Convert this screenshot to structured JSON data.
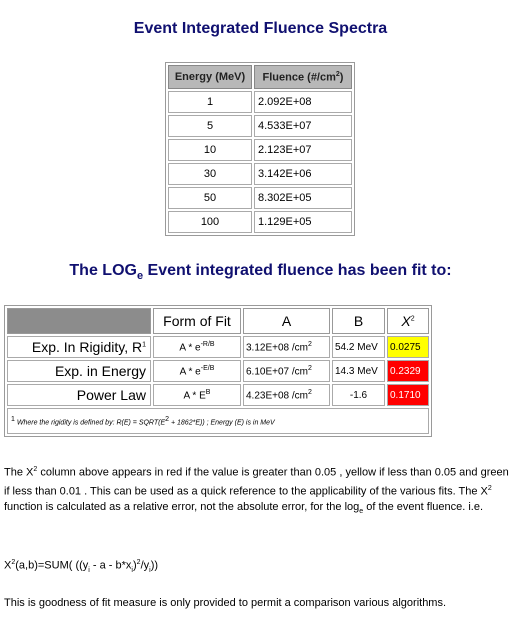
{
  "titles": {
    "spectra": "Event Integrated Fluence Spectra",
    "fit_pre": "The LOG",
    "fit_sub": "e",
    "fit_post": " Event integrated fluence has been fit to:"
  },
  "spectra": {
    "headers": [
      "Energy (MeV)",
      "Fluence (#/cm",
      "2",
      ")"
    ],
    "rows": [
      {
        "energy": "1",
        "fluence": "2.092E+08"
      },
      {
        "energy": "5",
        "fluence": "4.533E+07"
      },
      {
        "energy": "10",
        "fluence": "2.123E+07"
      },
      {
        "energy": "30",
        "fluence": "3.142E+06"
      },
      {
        "energy": "50",
        "fluence": "8.302E+05"
      },
      {
        "energy": "100",
        "fluence": "1.129E+05"
      }
    ]
  },
  "fits": {
    "headers": {
      "form": "Form of Fit",
      "a": "A",
      "b": "B",
      "x2": "X",
      "x2_sup": "2"
    },
    "rows": [
      {
        "name": "Exp. In Rigidity, R",
        "name_sup": "1",
        "form": "A * e",
        "form_sup": "-R/B",
        "a": "3.12E+08 /cm",
        "a_sup": "2",
        "b": "54.2 MeV",
        "x2": "0.0275",
        "x2_color": "#ffff00"
      },
      {
        "name": "Exp. in Energy",
        "name_sup": "",
        "form": "A * e",
        "form_sup": "-E/B",
        "a": "6.10E+07 /cm",
        "a_sup": "2",
        "b": "14.3 MeV",
        "x2": "0.2329",
        "x2_color": "#ff0000"
      },
      {
        "name": "Power Law",
        "name_sup": "",
        "form": "A * E",
        "form_sup": "B",
        "a": "4.23E+08 /cm",
        "a_sup": "2",
        "b": "-1.6",
        "x2": "0.1710",
        "x2_color": "#ff0000"
      }
    ],
    "note": {
      "sup": "1",
      "pre": " Where the rigidity is defined by: R(E) = SQRT(E",
      "sup2": "2",
      "post": " + 1862*E)) ; Energy (E) is in MeV"
    }
  },
  "paragraphs": {
    "p1_a": "The X",
    "p1_sup1": "2",
    "p1_b": " column above appears in red if the value is greater than 0.05 , yellow if less than 0.05 and green if less than 0.01 . This can be used as a quick reference to the applicability of the various fits. The X",
    "p1_sup2": "2",
    "p1_c": " function is calculated as a relative error, not the absolute error, for the log",
    "p1_sub": "e",
    "p1_d": " of the event fluence. i.e.",
    "formula_a": "X",
    "formula_sup1": "2",
    "formula_b": "(a,b)=SUM( ((y",
    "formula_sub1": "i",
    "formula_c": " - a - b*x",
    "formula_sub2": "i",
    "formula_d": ")",
    "formula_sup2": "2",
    "formula_e": "/y",
    "formula_sub3": "i",
    "formula_f": "))",
    "p3": "This is goodness of fit measure is only provided to permit a comparison various algorithms."
  }
}
